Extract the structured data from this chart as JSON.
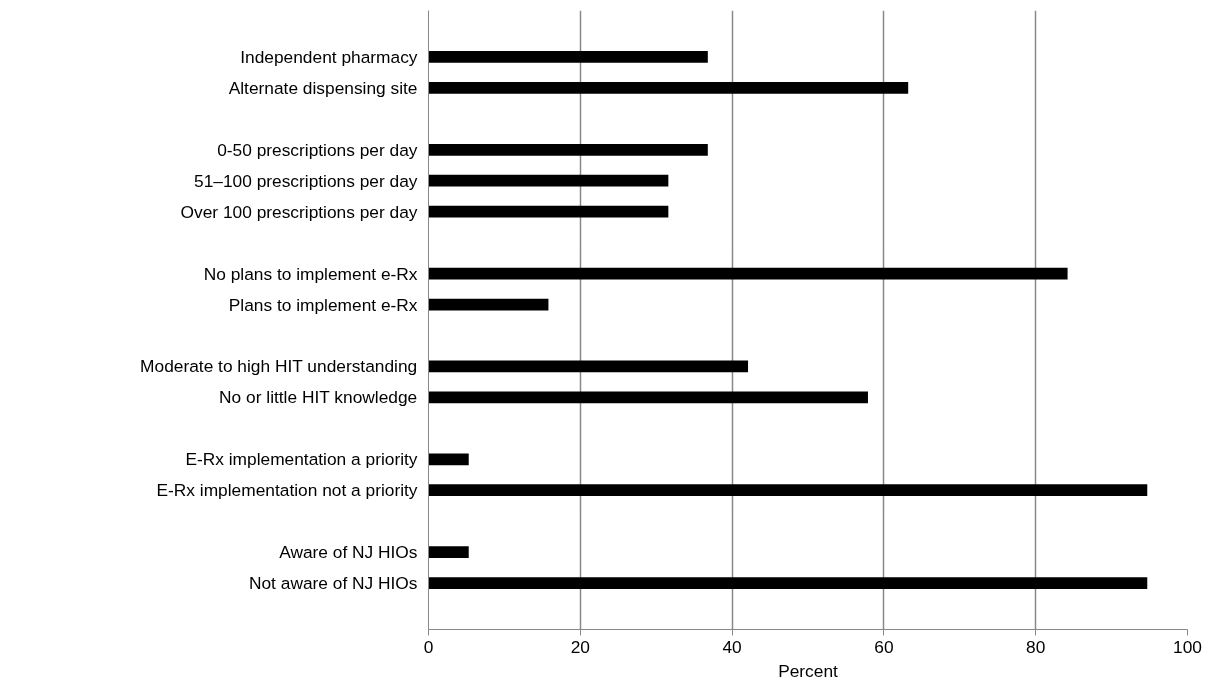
{
  "chart_data": {
    "type": "bar",
    "orientation": "horizontal",
    "xlabel": "Percent",
    "categories": [
      null,
      "Independent pharmacy",
      "Alternate dispensing site",
      null,
      "0-50 prescriptions per day",
      "51–100 prescriptions per day",
      "Over 100 prescriptions per day",
      null,
      "No plans to implement e-Rx",
      "Plans to implement e-Rx",
      null,
      "Moderate to high HIT understanding",
      "No or little HIT knowledge",
      null,
      "E-Rx implementation a priority",
      "E-Rx implementation not a priority",
      null,
      "Aware of NJ HIOs",
      "Not aware of NJ HIOs",
      null
    ],
    "values": [
      null,
      36.8,
      63.2,
      null,
      36.8,
      31.6,
      31.6,
      null,
      84.2,
      15.8,
      null,
      42.1,
      57.9,
      null,
      5.3,
      94.7,
      null,
      5.3,
      94.7,
      null
    ],
    "color": "#000000",
    "xlim": [
      0,
      100
    ],
    "xticks": [
      0,
      20,
      40,
      60,
      80,
      100
    ],
    "grid": "x"
  }
}
